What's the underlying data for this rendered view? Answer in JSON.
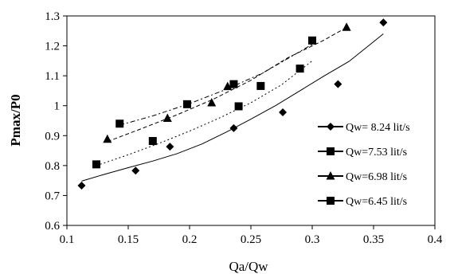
{
  "chart_data": {
    "type": "scatter",
    "title": "",
    "xlabel": "Qa/Qw",
    "ylabel": "Pmax/P0",
    "xlim": [
      0.1,
      0.4
    ],
    "ylim": [
      0.6,
      1.3
    ],
    "xticks": [
      0.1,
      0.15,
      0.2,
      0.25,
      0.3,
      0.35,
      0.4
    ],
    "yticks": [
      0.6,
      0.7,
      0.8,
      0.9,
      1.0,
      1.1,
      1.2,
      1.3
    ],
    "xtick_labels": [
      "0.1",
      "0.15",
      "0.2",
      "0.25",
      "0.3",
      "0.35",
      "0.4"
    ],
    "ytick_labels": [
      "0.6",
      "0.7",
      "0.8",
      "0.9",
      "1",
      "1.1",
      "1.2",
      "1.3"
    ],
    "grid": false,
    "legend_position": "right",
    "series": [
      {
        "name": "Qw= 8.24 lit/s",
        "marker": "diamond",
        "trend_style": "solid",
        "points": [
          [
            0.112,
            0.733
          ],
          [
            0.156,
            0.783
          ],
          [
            0.184,
            0.863
          ],
          [
            0.236,
            0.925
          ],
          [
            0.276,
            0.978
          ],
          [
            0.321,
            1.072
          ],
          [
            0.358,
            1.278
          ]
        ],
        "trend": [
          [
            0.112,
            0.748
          ],
          [
            0.13,
            0.77
          ],
          [
            0.15,
            0.793
          ],
          [
            0.17,
            0.815
          ],
          [
            0.19,
            0.84
          ],
          [
            0.21,
            0.872
          ],
          [
            0.23,
            0.912
          ],
          [
            0.25,
            0.955
          ],
          [
            0.27,
            1.0
          ],
          [
            0.29,
            1.05
          ],
          [
            0.31,
            1.1
          ],
          [
            0.33,
            1.148
          ],
          [
            0.358,
            1.24
          ]
        ]
      },
      {
        "name": "Qw=7.53 lit/s",
        "marker": "square",
        "trend_style": "dotted",
        "points": [
          [
            0.124,
            0.804
          ],
          [
            0.17,
            0.882
          ],
          [
            0.24,
            0.998
          ],
          [
            0.258,
            1.066
          ],
          [
            0.29,
            1.124
          ]
        ],
        "trend": [
          [
            0.124,
            0.8
          ],
          [
            0.15,
            0.836
          ],
          [
            0.175,
            0.874
          ],
          [
            0.2,
            0.915
          ],
          [
            0.225,
            0.96
          ],
          [
            0.25,
            1.01
          ],
          [
            0.275,
            1.07
          ],
          [
            0.3,
            1.15
          ]
        ]
      },
      {
        "name": "Qw=6.98 lit/s",
        "marker": "triangle",
        "trend_style": "dashed",
        "points": [
          [
            0.133,
            0.888
          ],
          [
            0.182,
            0.958
          ],
          [
            0.218,
            1.01
          ],
          [
            0.231,
            1.064
          ],
          [
            0.328,
            1.262
          ]
        ],
        "trend": [
          [
            0.133,
            0.88
          ],
          [
            0.16,
            0.922
          ],
          [
            0.19,
            0.97
          ],
          [
            0.22,
            1.023
          ],
          [
            0.25,
            1.085
          ],
          [
            0.28,
            1.16
          ],
          [
            0.31,
            1.22
          ],
          [
            0.328,
            1.262
          ]
        ]
      },
      {
        "name": "Qw=6.45 lit/s",
        "marker": "square",
        "trend_style": "dash-dot",
        "points": [
          [
            0.143,
            0.94
          ],
          [
            0.198,
            1.005
          ],
          [
            0.236,
            1.072
          ],
          [
            0.3,
            1.218
          ]
        ],
        "trend": [
          [
            0.143,
            0.935
          ],
          [
            0.17,
            0.966
          ],
          [
            0.2,
            1.007
          ],
          [
            0.23,
            1.055
          ],
          [
            0.26,
            1.11
          ],
          [
            0.3,
            1.205
          ]
        ]
      }
    ]
  }
}
